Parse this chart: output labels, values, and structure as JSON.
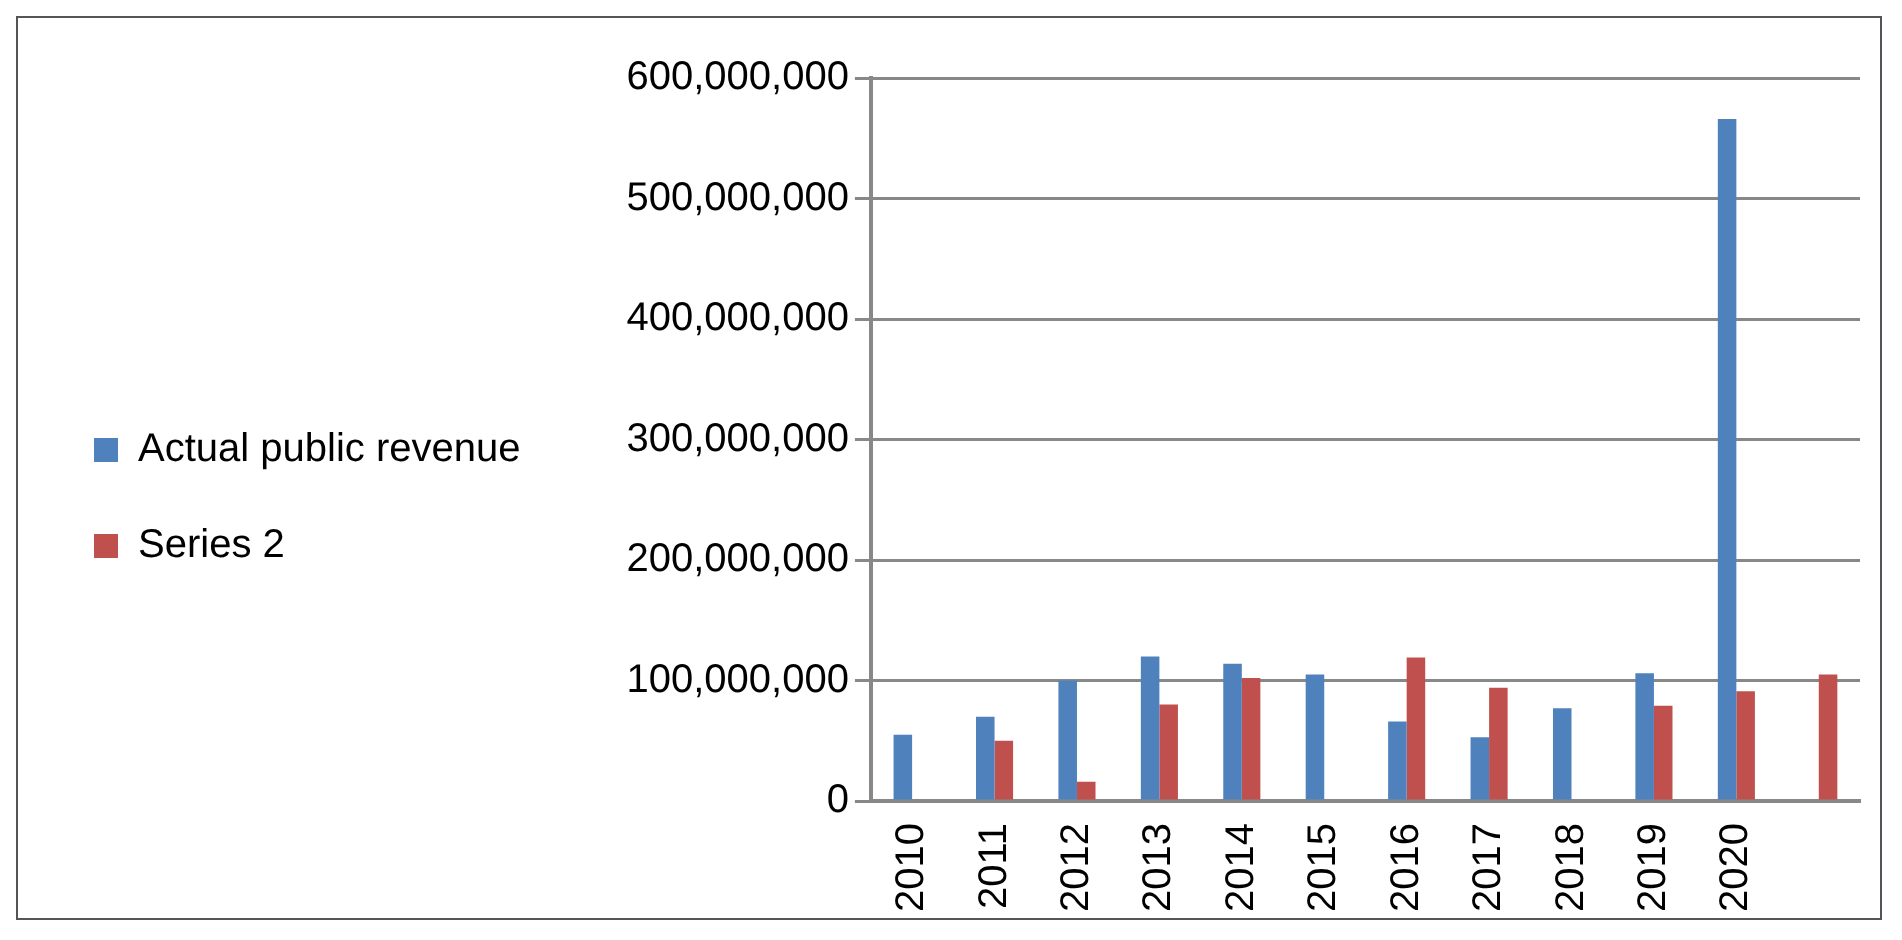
{
  "chart_data": {
    "type": "bar",
    "categories": [
      "2010",
      "2011",
      "2012",
      "2013",
      "2014",
      "2015",
      "2016",
      "2017",
      "2018",
      "2019",
      "2020",
      null
    ],
    "series": [
      {
        "name": "Actual public revenue",
        "color": "#4f81bd",
        "values": [
          55000000,
          70000000,
          100000000,
          120000000,
          114000000,
          105000000,
          66000000,
          53000000,
          77000000,
          106000000,
          566000000,
          null
        ]
      },
      {
        "name": "Series 2",
        "color": "#c0504d",
        "values": [
          null,
          50000000,
          16000000,
          80000000,
          102000000,
          null,
          119000000,
          94000000,
          null,
          79000000,
          91000000,
          105000000
        ]
      }
    ],
    "ylim": [
      0,
      600000000
    ],
    "yticks": [
      0,
      {
        "value": 100000000,
        "label": "100,000,000"
      },
      {
        "value": 200000000,
        "label": "200,000,000"
      },
      {
        "value": 300000000,
        "label": "300,000,000"
      },
      {
        "value": 400000000,
        "label": "400,000,000"
      },
      {
        "value": 500000000,
        "label": "500,000,000"
      },
      {
        "value": 600000000,
        "label": "600,000,000"
      }
    ],
    "grid": "y",
    "legend": "left"
  }
}
